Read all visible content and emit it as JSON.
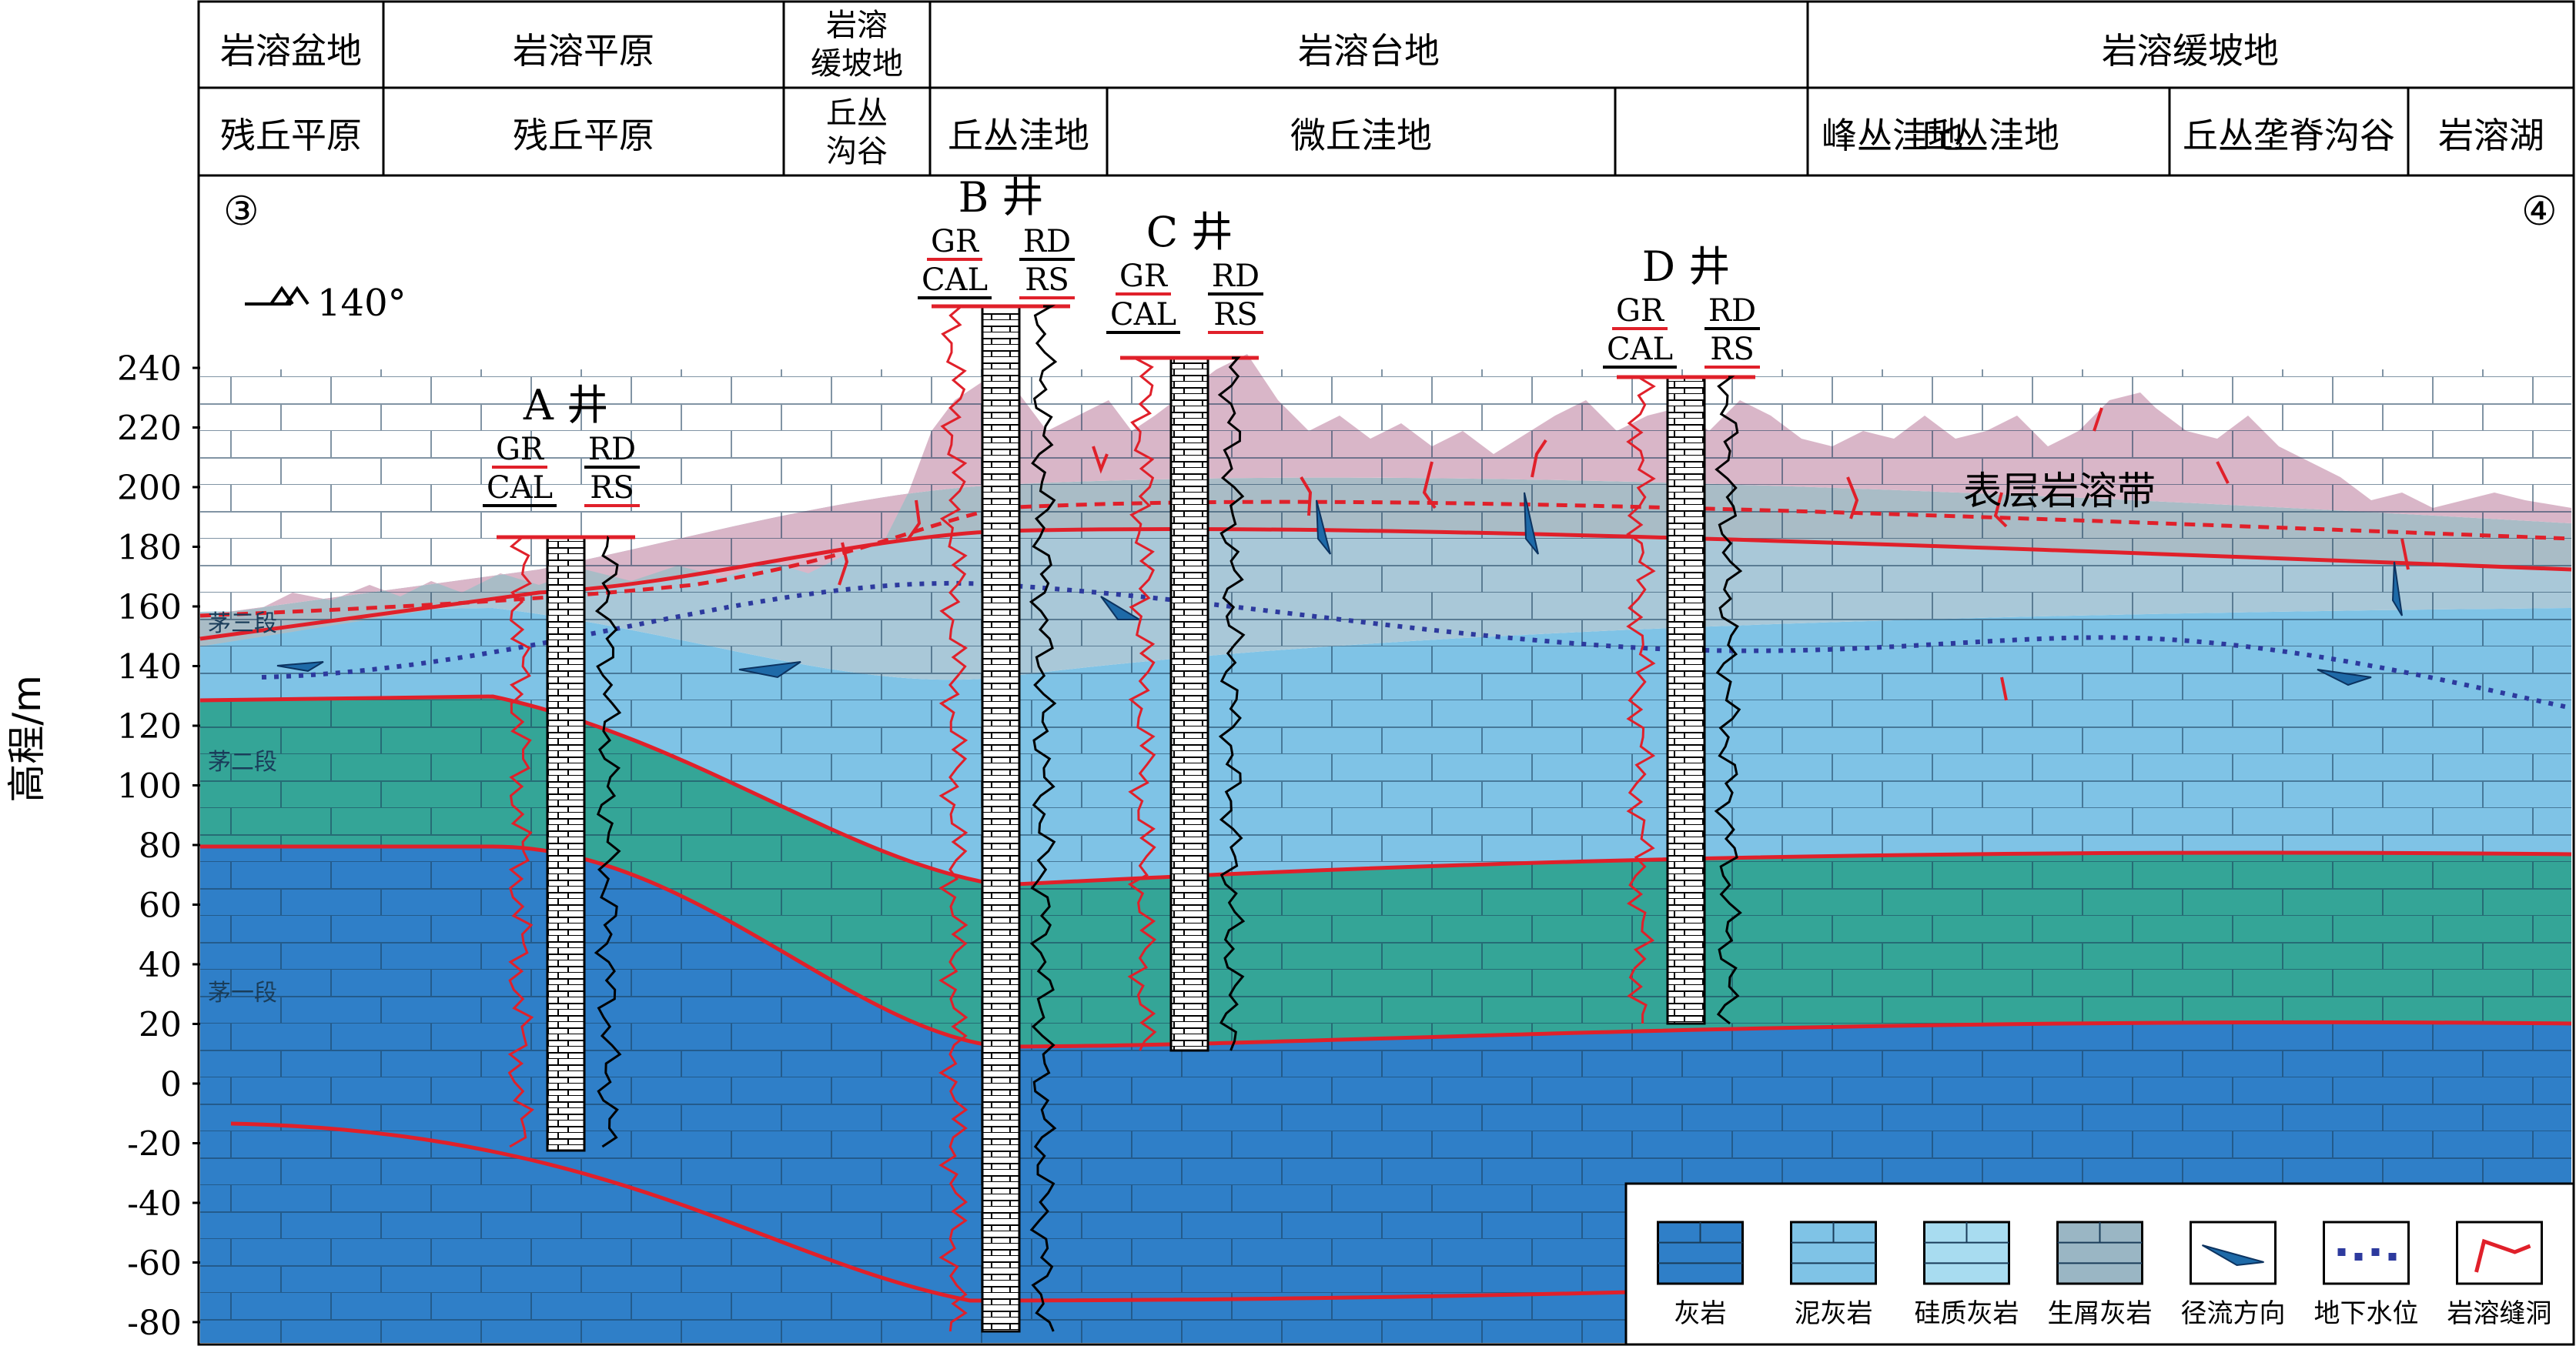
{
  "header": {
    "row1": [
      "岩溶盆地",
      "岩溶平原",
      "岩溶缓坡地",
      "岩溶台地",
      "岩溶缓坡地"
    ],
    "row2": [
      "残丘平原",
      "残丘平原",
      "丘丛沟谷",
      "丘丛洼地",
      "微丘洼地",
      "峰丛洼地",
      "丘丛洼地",
      "丘丛垄脊沟谷",
      "岩溶湖"
    ]
  },
  "profile": {
    "start_marker": "③",
    "end_marker": "④",
    "orientation": "140°",
    "surface_zone_label": "表层岩溶带"
  },
  "y_axis": {
    "label": "高程/m",
    "ticks": [
      240,
      220,
      200,
      180,
      160,
      140,
      120,
      100,
      80,
      60,
      40,
      20,
      0,
      -20,
      -40,
      -60,
      -80
    ]
  },
  "formations": [
    "茅三段",
    "茅二段",
    "茅一段"
  ],
  "wells": [
    {
      "name": "A 井",
      "logs_left": [
        "GR",
        "CAL"
      ],
      "logs_right": [
        "RD",
        "RS"
      ]
    },
    {
      "name": "B 井",
      "logs_left": [
        "GR",
        "CAL"
      ],
      "logs_right": [
        "RD",
        "RS"
      ]
    },
    {
      "name": "C 井",
      "logs_left": [
        "GR",
        "CAL"
      ],
      "logs_right": [
        "RD",
        "RS"
      ]
    },
    {
      "name": "D 井",
      "logs_left": [
        "GR",
        "CAL"
      ],
      "logs_right": [
        "RD",
        "RS"
      ]
    }
  ],
  "legend": {
    "items": [
      {
        "label": "灰岩",
        "color": "#2f7fc8",
        "pattern": "brick"
      },
      {
        "label": "泥灰岩",
        "color": "#7fc3e6",
        "pattern": "dash"
      },
      {
        "label": "硅质灰岩",
        "color": "#a8dcf0",
        "pattern": "si"
      },
      {
        "label": "生屑灰岩",
        "color": "#9ab6c4",
        "pattern": "bio"
      },
      {
        "label": "径流方向",
        "color": "#1e6aa8",
        "pattern": "arrow"
      },
      {
        "label": "地下水位",
        "color": "#2d3a9e",
        "pattern": "dots"
      },
      {
        "label": "岩溶缝洞",
        "color": "#e0202a",
        "pattern": "karst"
      }
    ]
  },
  "colors": {
    "limestone": "#2f7fc8",
    "teal": "#34a597",
    "marl": "#7fc3e6",
    "karst_zone": "#d9b6c8",
    "grey_band": "#a9bcc6",
    "red_boundary": "#e0202a",
    "water_table": "#2d3a9e"
  }
}
